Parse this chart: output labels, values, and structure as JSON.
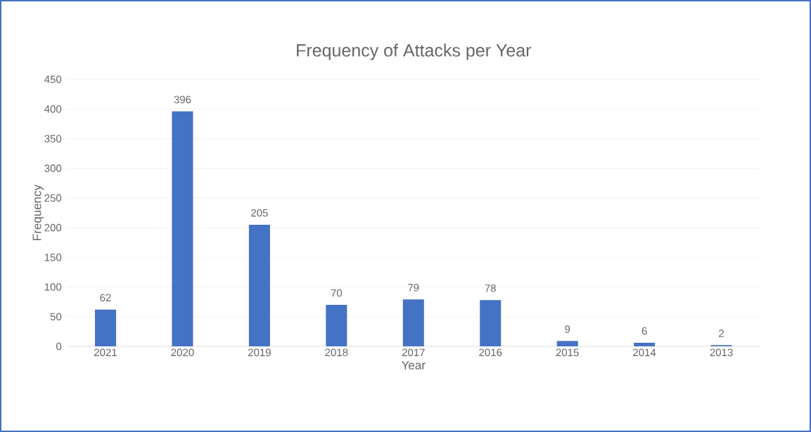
{
  "chart_data": {
    "type": "bar",
    "title": "Frequency of Attacks per Year",
    "xlabel": "Year",
    "ylabel": "Frequency",
    "categories": [
      "2021",
      "2020",
      "2019",
      "2018",
      "2017",
      "2016",
      "2015",
      "2014",
      "2013"
    ],
    "values": [
      62,
      396,
      205,
      70,
      79,
      78,
      9,
      6,
      2
    ],
    "color": "#4472c4",
    "ylim": [
      0,
      450
    ],
    "yticks": [
      0,
      50,
      100,
      150,
      200,
      250,
      300,
      350,
      400,
      450
    ],
    "grid": "y",
    "data_labels": true
  }
}
